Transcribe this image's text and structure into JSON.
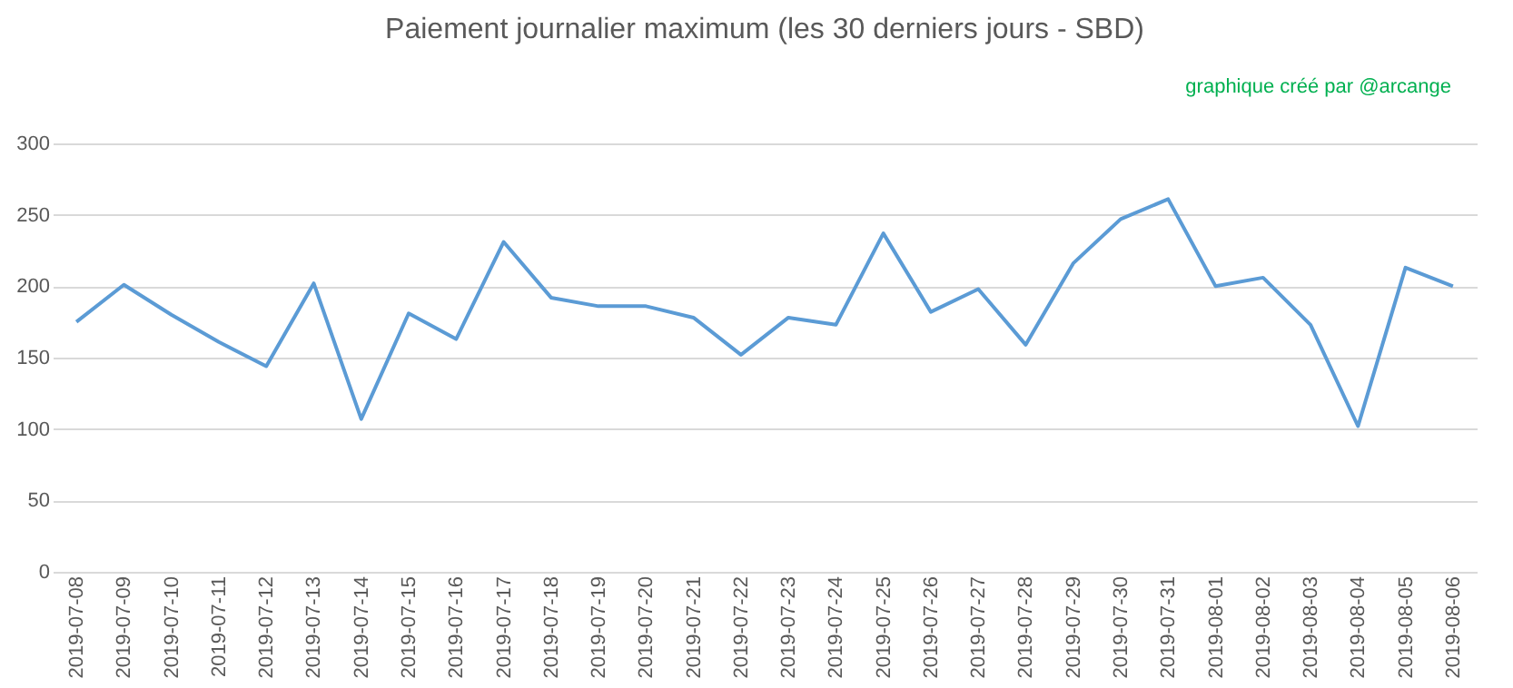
{
  "chart_data": {
    "type": "line",
    "title": "Paiement journalier maximum (les 30 derniers jours - SBD)",
    "annotations": [
      "graphique créé par @arcange"
    ],
    "categories": [
      "2019-07-08",
      "2019-07-09",
      "2019-07-10",
      "2019-07-11",
      "2019-07-12",
      "2019-07-13",
      "2019-07-14",
      "2019-07-15",
      "2019-07-16",
      "2019-07-17",
      "2019-07-18",
      "2019-07-19",
      "2019-07-20",
      "2019-07-21",
      "2019-07-22",
      "2019-07-23",
      "2019-07-24",
      "2019-07-25",
      "2019-07-26",
      "2019-07-27",
      "2019-07-28",
      "2019-07-29",
      "2019-07-30",
      "2019-07-31",
      "2019-08-01",
      "2019-08-02",
      "2019-08-03",
      "2019-08-04",
      "2019-08-05",
      "2019-08-06"
    ],
    "series": [
      {
        "color": "#5b9bd5",
        "values": [
          175,
          201,
          180,
          161,
          144,
          202,
          107,
          181,
          163,
          231,
          192,
          186,
          186,
          178,
          152,
          178,
          173,
          237,
          182,
          198,
          159,
          216,
          247,
          261,
          200,
          206,
          173,
          102,
          213,
          200
        ]
      }
    ],
    "ylim": [
      0,
      300
    ],
    "yticks": [
      0,
      50,
      100,
      150,
      200,
      250,
      300
    ],
    "grid": "y",
    "marker": "none",
    "line_style": "solid"
  }
}
